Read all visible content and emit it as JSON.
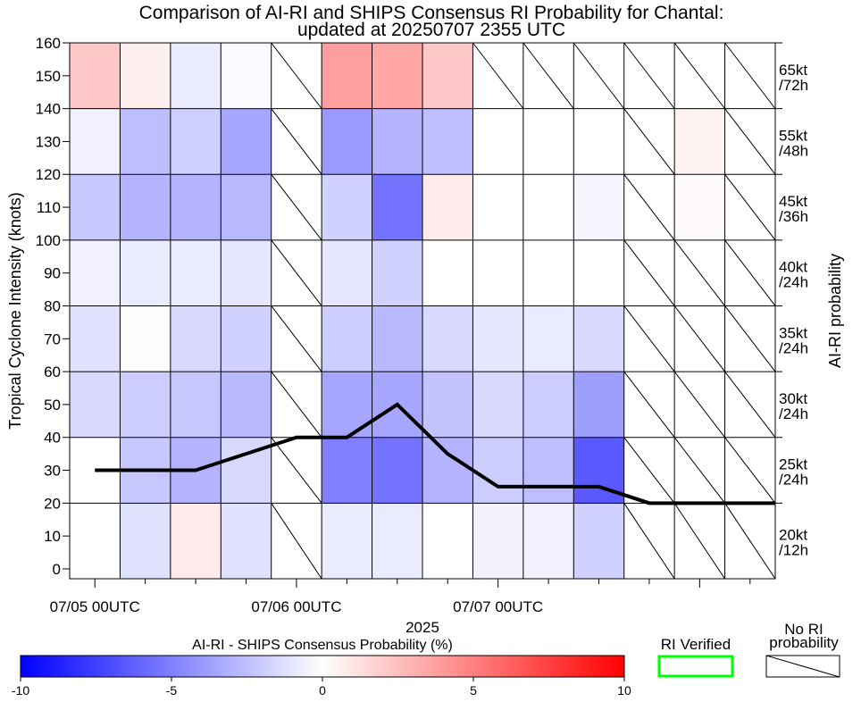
{
  "chart_data": {
    "type": "heatmap",
    "title_line1": "Comparison of AI-RI and SHIPS Consensus RI Probability for Chantal:",
    "title_line2": "updated at 20250707 2355 UTC",
    "ylabel": "Tropical Cyclone Intensity (knots)",
    "y_ticks": [
      "0",
      "10",
      "20",
      "30",
      "40",
      "50",
      "60",
      "70",
      "80",
      "90",
      "100",
      "110",
      "120",
      "130",
      "140",
      "150",
      "160"
    ],
    "ylim": [
      -3,
      160
    ],
    "xlabel": "2025",
    "x_ticks": [
      "07/05 00UTC",
      "07/06 00UTC",
      "07/07 00UTC"
    ],
    "right_axis_label": "AI-RI probability",
    "time_columns": 14,
    "time_step_hours": 6,
    "row_bounds_kt": [
      -3,
      20,
      40,
      60,
      80,
      100,
      120,
      140,
      160
    ],
    "row_labels": [
      {
        "kt": "20kt",
        "period": "/12h"
      },
      {
        "kt": "25kt",
        "period": "/24h"
      },
      {
        "kt": "30kt",
        "period": "/24h"
      },
      {
        "kt": "35kt",
        "period": "/24h"
      },
      {
        "kt": "40kt",
        "period": "/24h"
      },
      {
        "kt": "45kt",
        "period": "/36h"
      },
      {
        "kt": "55kt",
        "period": "/48h"
      },
      {
        "kt": "65kt",
        "period": "/72h"
      }
    ],
    "cell_values_note": "difference AI-RI minus SHIPS consensus probability (%); null = no RI probability",
    "cells": [
      [
        0,
        -1.2,
        0.8,
        -1.2,
        null,
        -0.8,
        -0.8,
        0,
        -0.5,
        -0.6,
        -1.8,
        null,
        null,
        null
      ],
      [
        0,
        -2.2,
        -3.0,
        -1.5,
        null,
        -5.0,
        -5.5,
        -3.0,
        -2.0,
        -2.6,
        -6.5,
        null,
        null,
        null
      ],
      [
        -1.5,
        -2.0,
        -2.2,
        -2.8,
        null,
        -3.5,
        -3.5,
        -2.4,
        -1.5,
        -2.0,
        -3.8,
        null,
        null,
        null
      ],
      [
        -1.2,
        -0.1,
        -1.5,
        -1.8,
        null,
        -2.0,
        -2.8,
        -1.5,
        -1.0,
        -0.8,
        -1.5,
        null,
        null,
        null
      ],
      [
        -0.6,
        -0.8,
        -0.8,
        -1.0,
        null,
        -1.0,
        -1.8,
        0,
        0,
        0,
        0,
        null,
        null,
        null
      ],
      [
        -2.2,
        -3.0,
        -3.0,
        -2.8,
        null,
        -1.8,
        -5.5,
        0.8,
        0,
        0,
        -0.4,
        null,
        0.2,
        null
      ],
      [
        -0.6,
        -2.6,
        -1.9,
        -3.5,
        null,
        -4.0,
        -3.0,
        -2.5,
        0,
        0,
        0,
        null,
        0.5,
        null
      ],
      [
        2.2,
        0.6,
        -0.8,
        -0.2,
        null,
        3.8,
        3.5,
        2.2,
        null,
        null,
        null,
        null,
        null,
        null
      ]
    ],
    "series": [
      {
        "name": "Best-track intensity (kt)",
        "column_positions": [
          0,
          1,
          2,
          3,
          4,
          5,
          6,
          7,
          8,
          9,
          10,
          11,
          12,
          13
        ],
        "values": [
          30,
          30,
          30,
          35,
          40,
          40,
          50,
          35,
          25,
          25,
          25,
          20,
          20,
          20
        ]
      }
    ],
    "colorbar": {
      "label": "AI-RI - SHIPS Consensus Probability (%)",
      "min": -10,
      "max": 10,
      "tick_values": [
        -10,
        -5,
        0,
        5,
        10
      ],
      "tick_labels": [
        "-10",
        "-5",
        "0",
        "5",
        "10"
      ]
    },
    "legend_ri_verified": "RI Verified",
    "legend_ri_verified_color": "#00ff00",
    "legend_no_ri_line1": "No RI",
    "legend_no_ri_line2": "probability"
  }
}
